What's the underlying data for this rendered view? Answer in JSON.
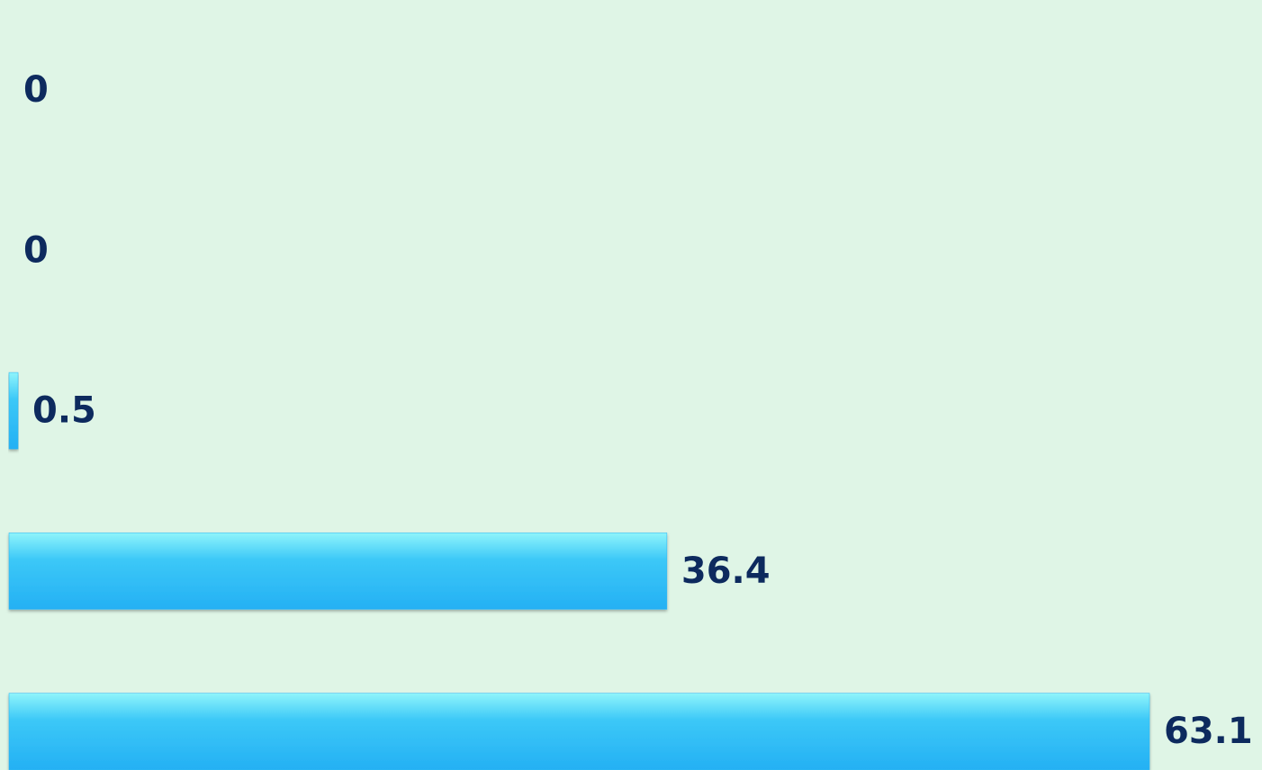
{
  "chart_data": {
    "type": "bar",
    "orientation": "horizontal",
    "values": [
      0,
      0,
      0.5,
      36.4,
      63.1
    ],
    "color": "#29b6f6"
  }
}
